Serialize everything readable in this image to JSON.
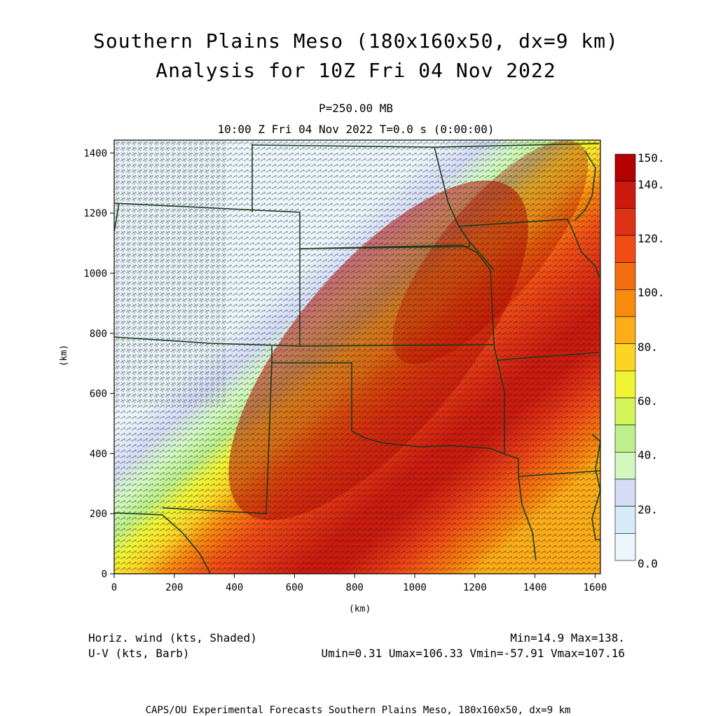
{
  "title": {
    "line1": "Southern Plains Meso (180x160x50, dx=9 km)",
    "line2": "Analysis for 10Z Fri 04 Nov 2022",
    "level": "P=250.00 MB",
    "time": "10:00 Z Fri 04 Nov 2022    T=0.0 s (0:00:00)"
  },
  "axes": {
    "x_label": "(km)",
    "y_label": "(km)",
    "x_ticks": [
      "0",
      "200",
      "400",
      "600",
      "800",
      "1000",
      "1200",
      "1400",
      "1600"
    ],
    "y_ticks": [
      "0",
      "200",
      "400",
      "600",
      "800",
      "1000",
      "1200",
      "1400"
    ]
  },
  "colorbar": {
    "labels": [
      "150.",
      "140.",
      "120.",
      "100.",
      "80.",
      "60.",
      "40.",
      "20.",
      "0.0"
    ],
    "colors": [
      "#b40000",
      "#cc1a0e",
      "#e03214",
      "#f24e14",
      "#f46c10",
      "#f88a0e",
      "#fcad18",
      "#fcd424",
      "#f0f432",
      "#d4f45c",
      "#bcf08c",
      "#d2f8c0",
      "#d4dcf6",
      "#d6ebf8",
      "#eaf6fb"
    ]
  },
  "footer": {
    "left1": "Horiz. wind (kts, Shaded)",
    "left2": "U-V (kts, Barb)",
    "right1": "Min=14.9 Max=138.",
    "right2": "Umin=0.31 Umax=106.33 Vmin=-57.91 Vmax=107.16",
    "credit": "CAPS/OU Experimental Forecasts  Southern Plains Meso, 180x160x50, dx=9 km"
  }
}
